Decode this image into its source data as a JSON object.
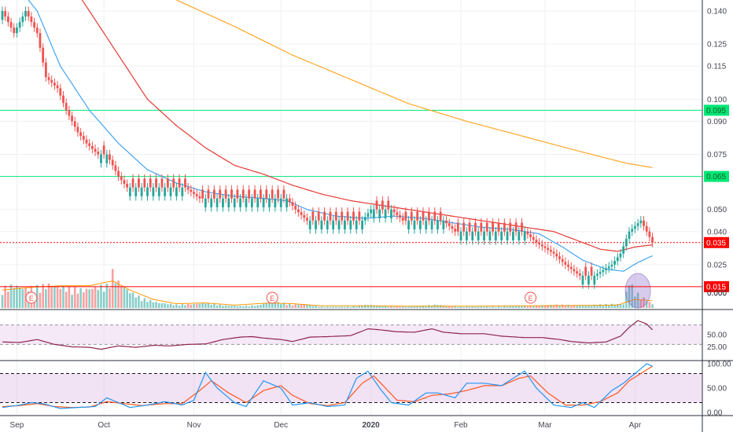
{
  "chart_data": {
    "type": "candlestick",
    "colors": {
      "up": "#26a69a",
      "down": "#ef5350",
      "ema_fast": "#42a5f5",
      "ema_slow": "#e53935",
      "ema_long": "#ffa726",
      "hline_green": "#00e676",
      "hline_red": "#ff0000",
      "rsi_line": "#8e244d",
      "rsi_band": "#e1bee7",
      "stoch_k": "#2196f3",
      "stoch_d": "#ff5722",
      "volume_ma": "#ff9800",
      "axis_text": "#434651",
      "grid": "#eef0f3"
    },
    "x_axis": {
      "labels": [
        "Sep",
        "Oct",
        "Nov",
        "Dec",
        "2020",
        "Feb",
        "Mar",
        "Apr"
      ],
      "label_index": [
        5,
        35,
        66,
        96,
        127,
        158,
        187,
        218
      ]
    },
    "price_panel": {
      "ylim": [
        0.005,
        0.145
      ],
      "ticks": [
        "0.140",
        "0.125",
        "0.115",
        "0.100",
        "0.090",
        "0.075",
        "0.050",
        "0.040",
        "0.025",
        "0.000"
      ],
      "tick_values": [
        0.14,
        0.125,
        0.115,
        0.1,
        0.09,
        0.075,
        0.05,
        0.04,
        0.025,
        0.0
      ],
      "hlines": [
        {
          "value": 0.095,
          "label": "0.095",
          "color": "green",
          "style": "solid"
        },
        {
          "value": 0.065,
          "label": "0.065",
          "color": "green",
          "style": "solid"
        },
        {
          "value": 0.035,
          "label": "0.035",
          "color": "red",
          "style": "dotted"
        },
        {
          "value": 0.015,
          "label": "0.015",
          "color": "red",
          "style": "solid"
        }
      ],
      "candles": {
        "close_points": [
          [
            0,
            0.14
          ],
          [
            4,
            0.13
          ],
          [
            8,
            0.14
          ],
          [
            12,
            0.13
          ],
          [
            15,
            0.11
          ],
          [
            19,
            0.105
          ],
          [
            22,
            0.095
          ],
          [
            26,
            0.085
          ],
          [
            29,
            0.08
          ],
          [
            33,
            0.075
          ],
          [
            36,
            0.075
          ],
          [
            38,
            0.07
          ],
          [
            40,
            0.065
          ],
          [
            43,
            0.06
          ],
          [
            48,
            0.06
          ],
          [
            58,
            0.06
          ],
          [
            63,
            0.06
          ],
          [
            68,
            0.055
          ],
          [
            83,
            0.055
          ],
          [
            92,
            0.055
          ],
          [
            98,
            0.055
          ],
          [
            101,
            0.05
          ],
          [
            105,
            0.045
          ],
          [
            118,
            0.045
          ],
          [
            124,
            0.045
          ],
          [
            127,
            0.05
          ],
          [
            134,
            0.05
          ],
          [
            138,
            0.045
          ],
          [
            152,
            0.045
          ],
          [
            156,
            0.04
          ],
          [
            169,
            0.04
          ],
          [
            180,
            0.04
          ],
          [
            184,
            0.035
          ],
          [
            190,
            0.03
          ],
          [
            194,
            0.025
          ],
          [
            199,
            0.02
          ],
          [
            204,
            0.02
          ],
          [
            210,
            0.025
          ],
          [
            213,
            0.03
          ],
          [
            216,
            0.04
          ],
          [
            220,
            0.045
          ],
          [
            224,
            0.035
          ]
        ]
      },
      "ema_fast": [
        [
          0,
          0.16
        ],
        [
          12,
          0.14
        ],
        [
          20,
          0.115
        ],
        [
          30,
          0.095
        ],
        [
          40,
          0.08
        ],
        [
          50,
          0.068
        ],
        [
          60,
          0.062
        ],
        [
          70,
          0.058
        ],
        [
          80,
          0.056
        ],
        [
          90,
          0.055
        ],
        [
          98,
          0.054
        ],
        [
          105,
          0.05
        ],
        [
          115,
          0.047
        ],
        [
          125,
          0.046
        ],
        [
          135,
          0.047
        ],
        [
          145,
          0.046
        ],
        [
          155,
          0.044
        ],
        [
          165,
          0.042
        ],
        [
          175,
          0.041
        ],
        [
          185,
          0.039
        ],
        [
          193,
          0.033
        ],
        [
          200,
          0.027
        ],
        [
          208,
          0.023
        ],
        [
          214,
          0.022
        ],
        [
          219,
          0.026
        ],
        [
          224,
          0.029
        ]
      ],
      "ema_slow": [
        [
          20,
          0.16
        ],
        [
          30,
          0.14
        ],
        [
          40,
          0.12
        ],
        [
          50,
          0.1
        ],
        [
          60,
          0.088
        ],
        [
          70,
          0.078
        ],
        [
          80,
          0.07
        ],
        [
          90,
          0.066
        ],
        [
          100,
          0.061
        ],
        [
          110,
          0.057
        ],
        [
          120,
          0.054
        ],
        [
          130,
          0.052
        ],
        [
          140,
          0.05
        ],
        [
          150,
          0.048
        ],
        [
          160,
          0.046
        ],
        [
          170,
          0.044
        ],
        [
          180,
          0.042
        ],
        [
          190,
          0.04
        ],
        [
          200,
          0.035
        ],
        [
          206,
          0.032
        ],
        [
          212,
          0.031
        ],
        [
          218,
          0.033
        ],
        [
          224,
          0.034
        ]
      ],
      "ema_long": [
        [
          45,
          0.155
        ],
        [
          60,
          0.145
        ],
        [
          80,
          0.133
        ],
        [
          100,
          0.12
        ],
        [
          120,
          0.109
        ],
        [
          140,
          0.098
        ],
        [
          160,
          0.09
        ],
        [
          180,
          0.083
        ],
        [
          200,
          0.076
        ],
        [
          215,
          0.071
        ],
        [
          224,
          0.069
        ]
      ]
    },
    "volume_panel": {
      "ytick": "0.000",
      "earnings_markers": [
        {
          "index": 10,
          "label": "E"
        },
        {
          "index": 93,
          "label": "E"
        },
        {
          "index": 182,
          "label": "E"
        }
      ],
      "volumes": [
        [
          0,
          3
        ],
        [
          4,
          3.5
        ],
        [
          8,
          3
        ],
        [
          12,
          3.2
        ],
        [
          16,
          3.6
        ],
        [
          20,
          3.3
        ],
        [
          24,
          3
        ],
        [
          28,
          2.8
        ],
        [
          32,
          3.2
        ],
        [
          36,
          3.4
        ],
        [
          38,
          5.5
        ],
        [
          40,
          4
        ],
        [
          44,
          2.5
        ],
        [
          48,
          1.5
        ],
        [
          54,
          0.8
        ],
        [
          60,
          0.5
        ],
        [
          66,
          0.6
        ],
        [
          70,
          0.8
        ],
        [
          76,
          0.4
        ],
        [
          82,
          0.3
        ],
        [
          88,
          0.4
        ],
        [
          92,
          1
        ],
        [
          96,
          0.8
        ],
        [
          100,
          0.5
        ],
        [
          104,
          0.6
        ],
        [
          110,
          0.2
        ],
        [
          120,
          0.2
        ],
        [
          126,
          0.5
        ],
        [
          130,
          0.3
        ],
        [
          140,
          0.2
        ],
        [
          150,
          0.5
        ],
        [
          156,
          0.2
        ],
        [
          170,
          0.2
        ],
        [
          180,
          0.3
        ],
        [
          190,
          0.5
        ],
        [
          200,
          0.4
        ],
        [
          210,
          0.6
        ],
        [
          214,
          0.6
        ],
        [
          216,
          4.2
        ],
        [
          218,
          2.5
        ],
        [
          220,
          1.8
        ],
        [
          224,
          0.6
        ]
      ],
      "vol_ma": [
        [
          0,
          2.5
        ],
        [
          10,
          2.9
        ],
        [
          20,
          3.1
        ],
        [
          30,
          3.1
        ],
        [
          38,
          3.8
        ],
        [
          44,
          2.5
        ],
        [
          52,
          1.2
        ],
        [
          60,
          0.6
        ],
        [
          70,
          0.7
        ],
        [
          80,
          0.4
        ],
        [
          92,
          0.7
        ],
        [
          100,
          0.6
        ],
        [
          110,
          0.3
        ],
        [
          126,
          0.3
        ],
        [
          140,
          0.25
        ],
        [
          160,
          0.25
        ],
        [
          180,
          0.3
        ],
        [
          200,
          0.35
        ],
        [
          212,
          0.4
        ],
        [
          218,
          1.2
        ],
        [
          224,
          1.0
        ]
      ]
    },
    "rsi_panel": {
      "ticks": [
        "50.00",
        "25.00"
      ],
      "tick_values": [
        50,
        25
      ],
      "ylim": [
        0,
        100
      ],
      "band": [
        30,
        70
      ],
      "values": [
        [
          0,
          35
        ],
        [
          6,
          34
        ],
        [
          12,
          40
        ],
        [
          18,
          30
        ],
        [
          24,
          25
        ],
        [
          30,
          24
        ],
        [
          34,
          20
        ],
        [
          40,
          27
        ],
        [
          46,
          24
        ],
        [
          52,
          28
        ],
        [
          58,
          27
        ],
        [
          64,
          30
        ],
        [
          70,
          31
        ],
        [
          76,
          40
        ],
        [
          82,
          45
        ],
        [
          86,
          46
        ],
        [
          90,
          43
        ],
        [
          96,
          40
        ],
        [
          100,
          36
        ],
        [
          106,
          45
        ],
        [
          112,
          46
        ],
        [
          120,
          48
        ],
        [
          126,
          62
        ],
        [
          130,
          60
        ],
        [
          136,
          56
        ],
        [
          142,
          55
        ],
        [
          148,
          62
        ],
        [
          152,
          55
        ],
        [
          158,
          52
        ],
        [
          166,
          52
        ],
        [
          172,
          47
        ],
        [
          180,
          44
        ],
        [
          186,
          44
        ],
        [
          192,
          40
        ],
        [
          196,
          36
        ],
        [
          202,
          33
        ],
        [
          208,
          35
        ],
        [
          213,
          47
        ],
        [
          216,
          65
        ],
        [
          219,
          79
        ],
        [
          222,
          72
        ],
        [
          224,
          60
        ]
      ]
    },
    "stoch_panel": {
      "ticks": [
        "100.00",
        "50.00",
        "0.00"
      ],
      "tick_values": [
        100,
        50,
        0
      ],
      "ylim": [
        -5,
        105
      ],
      "band": [
        20,
        80
      ],
      "k": [
        [
          0,
          10
        ],
        [
          6,
          15
        ],
        [
          10,
          20
        ],
        [
          14,
          18
        ],
        [
          20,
          8
        ],
        [
          26,
          10
        ],
        [
          32,
          12
        ],
        [
          36,
          30
        ],
        [
          40,
          20
        ],
        [
          44,
          10
        ],
        [
          50,
          15
        ],
        [
          56,
          22
        ],
        [
          62,
          15
        ],
        [
          66,
          25
        ],
        [
          70,
          82
        ],
        [
          74,
          50
        ],
        [
          80,
          20
        ],
        [
          84,
          12
        ],
        [
          90,
          65
        ],
        [
          96,
          50
        ],
        [
          100,
          15
        ],
        [
          106,
          20
        ],
        [
          112,
          12
        ],
        [
          118,
          15
        ],
        [
          122,
          70
        ],
        [
          126,
          85
        ],
        [
          130,
          50
        ],
        [
          134,
          20
        ],
        [
          140,
          15
        ],
        [
          146,
          40
        ],
        [
          150,
          40
        ],
        [
          156,
          30
        ],
        [
          160,
          60
        ],
        [
          166,
          60
        ],
        [
          172,
          55
        ],
        [
          180,
          85
        ],
        [
          184,
          50
        ],
        [
          190,
          15
        ],
        [
          196,
          10
        ],
        [
          200,
          20
        ],
        [
          204,
          10
        ],
        [
          210,
          45
        ],
        [
          214,
          60
        ],
        [
          218,
          80
        ],
        [
          222,
          100
        ],
        [
          224,
          95
        ]
      ],
      "d": [
        [
          0,
          12
        ],
        [
          6,
          14
        ],
        [
          12,
          18
        ],
        [
          18,
          12
        ],
        [
          24,
          10
        ],
        [
          30,
          11
        ],
        [
          36,
          22
        ],
        [
          42,
          18
        ],
        [
          48,
          14
        ],
        [
          56,
          18
        ],
        [
          62,
          18
        ],
        [
          68,
          45
        ],
        [
          72,
          65
        ],
        [
          78,
          40
        ],
        [
          84,
          20
        ],
        [
          90,
          45
        ],
        [
          96,
          55
        ],
        [
          100,
          35
        ],
        [
          106,
          18
        ],
        [
          112,
          14
        ],
        [
          118,
          20
        ],
        [
          124,
          60
        ],
        [
          128,
          75
        ],
        [
          132,
          50
        ],
        [
          136,
          25
        ],
        [
          142,
          22
        ],
        [
          148,
          35
        ],
        [
          154,
          38
        ],
        [
          160,
          45
        ],
        [
          166,
          55
        ],
        [
          172,
          55
        ],
        [
          178,
          70
        ],
        [
          182,
          75
        ],
        [
          188,
          40
        ],
        [
          194,
          15
        ],
        [
          200,
          15
        ],
        [
          206,
          22
        ],
        [
          212,
          40
        ],
        [
          216,
          65
        ],
        [
          220,
          80
        ],
        [
          224,
          95
        ]
      ]
    }
  }
}
